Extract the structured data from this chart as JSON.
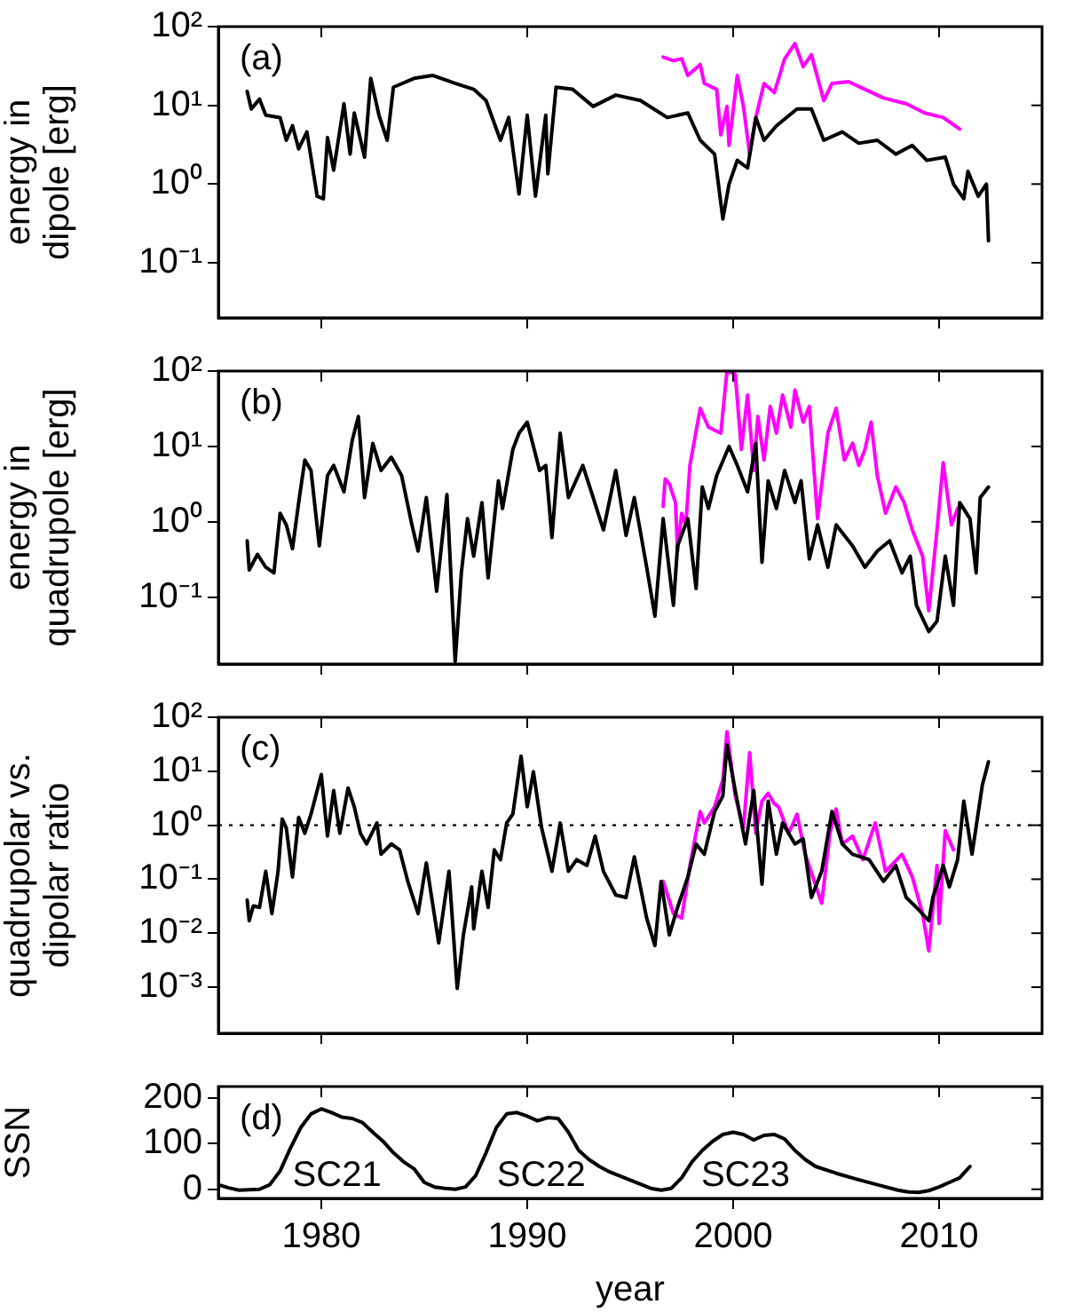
{
  "chart_data": [
    {
      "type": "line",
      "ylabel": "energy in dipole [erg]",
      "annotations": [
        "(a)"
      ],
      "log": "y",
      "xlim": [
        1975,
        2015
      ],
      "xticks": [
        1980,
        1990,
        2000,
        2010
      ],
      "ylim": [
        0.02,
        100
      ],
      "yticks": [
        {
          "value": 100,
          "label": "10²"
        },
        {
          "value": 10,
          "label": "10¹"
        },
        {
          "value": 1,
          "label": "10⁰"
        },
        {
          "value": 0.1,
          "label": "10⁻¹"
        }
      ],
      "tick_labels": "y",
      "series": [
        {
          "color": "#000000",
          "x": [
            1976.4,
            1976.6,
            1977.0,
            1977.3,
            1978.0,
            1978.3,
            1978.6,
            1978.9,
            1979.3,
            1979.8,
            1980.1,
            1980.3,
            1980.6,
            1981.1,
            1981.4,
            1981.6,
            1982.1,
            1982.4,
            1982.8,
            1983.2,
            1983.5,
            1984.5,
            1985.4,
            1986.5,
            1987.4,
            1988.0,
            1988.7,
            1989.1,
            1989.6,
            1990.0,
            1990.4,
            1990.9,
            1991.0,
            1991.4,
            1992.2,
            1993.2,
            1994.3,
            1995.5,
            1996.8,
            1997.8,
            1998.4,
            1999.1,
            1999.5,
            1999.8,
            2000.2,
            2000.7,
            2001.1,
            2001.5,
            2002.1,
            2003.1,
            2003.8,
            2004.4,
            2005.3,
            2006.1,
            2007.0,
            2007.9,
            2008.7,
            2009.4,
            2010.3,
            2010.7,
            2011.2,
            2011.4,
            2011.9,
            2012.3,
            2012.4
          ],
          "values": [
            15,
            9,
            12,
            7.5,
            7,
            3.6,
            5.5,
            2.8,
            4.6,
            0.7,
            0.65,
            3.9,
            1.5,
            10.5,
            2.4,
            8,
            2.2,
            22,
            7.5,
            3.6,
            17,
            22,
            24,
            19,
            16,
            11.5,
            3.6,
            7,
            0.75,
            7.5,
            0.7,
            7.5,
            1.35,
            17,
            16,
            9.7,
            13.5,
            11.5,
            7,
            8,
            3.6,
            2.4,
            0.36,
            1.0,
            2.0,
            1.6,
            7,
            3.6,
            5.5,
            9,
            9,
            3.6,
            4.6,
            3.3,
            3.6,
            2.4,
            3.1,
            2.0,
            2.2,
            1.0,
            0.65,
            1.45,
            0.7,
            1.0,
            0.19
          ]
        },
        {
          "color": "#ff00ff",
          "x": [
            1996.6,
            1997.1,
            1997.5,
            1997.8,
            1998.4,
            1998.6,
            1999.2,
            1999.4,
            1999.7,
            1999.8,
            2000.2,
            2000.5,
            2000.8,
            2001.1,
            2001.5,
            2002.0,
            2002.5,
            2003.0,
            2003.4,
            2003.8,
            2004.4,
            2004.8,
            2005.6,
            2006.4,
            2007.3,
            2008.4,
            2009.3,
            2010.2,
            2011.0
          ],
          "values": [
            41,
            37,
            39,
            24,
            33,
            19,
            16,
            4.2,
            9.7,
            3.1,
            24,
            9.7,
            2.4,
            7,
            19,
            14.5,
            39,
            61,
            31,
            44,
            11.5,
            19,
            20,
            16,
            12.4,
            10.5,
            8,
            7,
            5
          ]
        }
      ]
    },
    {
      "type": "line",
      "ylabel": "energy in quadrupole [erg]",
      "annotations": [
        "(b)"
      ],
      "log": "y",
      "xlim": [
        1975,
        2015
      ],
      "xticks": [
        1980,
        1990,
        2000,
        2010
      ],
      "ylim": [
        0.013,
        100
      ],
      "yticks": [
        {
          "value": 100,
          "label": "10²"
        },
        {
          "value": 10,
          "label": "10¹"
        },
        {
          "value": 1,
          "label": "10⁰"
        },
        {
          "value": 0.1,
          "label": "10⁻¹"
        }
      ],
      "tick_labels": "y",
      "series": [
        {
          "color": "#000000",
          "x": [
            1976.4,
            1976.5,
            1976.9,
            1977.3,
            1977.7,
            1978.0,
            1978.3,
            1978.6,
            1978.9,
            1979.2,
            1979.5,
            1979.9,
            1980.3,
            1980.6,
            1981.1,
            1981.5,
            1981.8,
            1982.1,
            1982.5,
            1982.9,
            1983.4,
            1983.9,
            1984.4,
            1984.7,
            1985.1,
            1985.6,
            1986.1,
            1986.5,
            1986.8,
            1987.1,
            1987.4,
            1987.8,
            1988.1,
            1988.6,
            1988.8,
            1989.3,
            1989.6,
            1990.0,
            1990.6,
            1990.9,
            1991.2,
            1991.6,
            1992.0,
            1992.7,
            1993.2,
            1993.7,
            1994.3,
            1994.8,
            1995.2,
            1995.8,
            1996.2,
            1996.6,
            1997.1,
            1997.3,
            1997.8,
            1998.2,
            1998.5,
            1998.8,
            1999.2,
            1999.8,
            2000.2,
            2000.7,
            2001.1,
            2001.4,
            2001.7,
            2002.1,
            2002.5,
            2003.0,
            2003.3,
            2003.7,
            2004.1,
            2004.6,
            2005.0,
            2005.8,
            2006.4,
            2007.0,
            2007.6,
            2008.2,
            2008.6,
            2008.9,
            2009.5,
            2009.9,
            2010.3,
            2010.7,
            2011.0,
            2011.5,
            2011.8,
            2012.0,
            2012.4
          ],
          "values": [
            0.56,
            0.23,
            0.37,
            0.25,
            0.21,
            1.3,
            0.91,
            0.44,
            1.8,
            6.6,
            4.8,
            0.48,
            4.1,
            5.6,
            2.5,
            12,
            25,
            2.1,
            11,
            4.8,
            7.2,
            4.1,
            0.91,
            0.41,
            2.1,
            0.12,
            2.3,
            0.014,
            0.21,
            1.1,
            0.35,
            1.8,
            0.18,
            3.5,
            1.5,
            9.1,
            15,
            21,
            4.8,
            5.6,
            0.62,
            15,
            2.1,
            5.6,
            2.1,
            0.78,
            4.8,
            0.66,
            2.1,
            0.25,
            0.056,
            1.1,
            0.078,
            0.48,
            1.1,
            0.13,
            2.9,
            1.5,
            4.1,
            10,
            5.6,
            2.5,
            11,
            0.29,
            3.5,
            1.5,
            4.8,
            1.8,
            3.5,
            0.32,
            0.91,
            0.25,
            0.91,
            0.48,
            0.25,
            0.41,
            0.56,
            0.21,
            0.35,
            0.078,
            0.035,
            0.048,
            0.35,
            0.078,
            1.8,
            1.1,
            0.21,
            2.1,
            2.9
          ]
        },
        {
          "color": "#ff00ff",
          "x": [
            1996.6,
            1996.7,
            1996.9,
            1997.2,
            1997.3,
            1997.5,
            1997.7,
            1997.9,
            1998.4,
            1998.8,
            1999.4,
            1999.7,
            2000.1,
            2000.4,
            2000.7,
            2001.0,
            2001.2,
            2001.5,
            2001.8,
            2002.1,
            2002.4,
            2002.8,
            2003.0,
            2003.4,
            2003.7,
            2004.1,
            2004.6,
            2005.0,
            2005.4,
            2005.8,
            2006.1,
            2006.4,
            2006.7,
            2007.0,
            2007.4,
            2007.9,
            2008.3,
            2008.7,
            2009.2,
            2009.5,
            2009.9,
            2010.2,
            2010.6,
            2010.9
          ],
          "values": [
            1.6,
            3.7,
            3.2,
            1.8,
            0.41,
            1.3,
            0.9,
            5.6,
            32,
            18,
            15,
            100,
            91,
            9.1,
            48,
            4.8,
            25,
            6.6,
            34,
            15,
            48,
            18,
            56,
            21,
            34,
            1.1,
            15,
            32,
            6.6,
            11,
            5.6,
            9.1,
            21,
            4.1,
            1.3,
            2.9,
            1.8,
            0.78,
            0.35,
            0.066,
            0.78,
            6.1,
            0.91,
            1.5
          ]
        }
      ]
    },
    {
      "type": "line",
      "ylabel": "quadrupolar vs. dipolar ratio",
      "annotations": [
        "(c)"
      ],
      "log": "y",
      "xlim": [
        1975,
        2015
      ],
      "xticks": [
        1980,
        1990,
        2000,
        2010
      ],
      "ylim": [
        0.00014,
        100
      ],
      "yticks": [
        {
          "value": 100,
          "label": "10²"
        },
        {
          "value": 10,
          "label": "10¹"
        },
        {
          "value": 1,
          "label": "10⁰"
        },
        {
          "value": 0.1,
          "label": "10⁻¹"
        },
        {
          "value": 0.01,
          "label": "10⁻²"
        },
        {
          "value": 0.001,
          "label": "10⁻³"
        }
      ],
      "tick_labels": "y",
      "ref_lines": [
        {
          "axis": "y",
          "value": 1,
          "line_style": "dotted"
        }
      ],
      "series": [
        {
          "color": "#000000",
          "x": [
            1976.4,
            1976.5,
            1976.7,
            1977.0,
            1977.3,
            1977.6,
            1977.9,
            1978.1,
            1978.3,
            1978.6,
            1978.9,
            1979.2,
            1979.5,
            1980.0,
            1980.3,
            1980.6,
            1980.9,
            1981.3,
            1981.6,
            1981.9,
            1982.2,
            1982.7,
            1982.9,
            1983.4,
            1983.8,
            1984.2,
            1984.7,
            1985.1,
            1985.7,
            1986.2,
            1986.6,
            1986.9,
            1987.3,
            1987.4,
            1987.8,
            1988.1,
            1988.4,
            1988.7,
            1989.0,
            1989.3,
            1989.7,
            1990.0,
            1990.3,
            1990.7,
            1991.2,
            1991.6,
            1992.0,
            1992.4,
            1992.9,
            1993.3,
            1993.7,
            1994.3,
            1994.8,
            1995.2,
            1995.8,
            1996.2,
            1996.5,
            1996.9,
            1997.3,
            1997.8,
            1998.2,
            1998.6,
            1999.1,
            1999.5,
            1999.7,
            2000.1,
            2000.6,
            2001.0,
            2001.4,
            2001.7,
            2002.1,
            2002.4,
            2003.0,
            2003.4,
            2003.8,
            2004.3,
            2004.8,
            2005.3,
            2005.8,
            2006.6,
            2007.3,
            2007.9,
            2008.4,
            2008.9,
            2009.5,
            2009.7,
            2010.2,
            2010.5,
            2010.9,
            2011.2,
            2011.6,
            2012.1,
            2012.4
          ],
          "values": [
            0.041,
            0.017,
            0.032,
            0.03,
            0.14,
            0.023,
            0.14,
            1.3,
            0.89,
            0.11,
            1.4,
            0.71,
            1.6,
            8.7,
            0.63,
            4.4,
            0.71,
            4.9,
            2.2,
            0.71,
            0.45,
            1.1,
            0.29,
            0.45,
            0.35,
            0.091,
            0.023,
            0.2,
            0.0066,
            0.14,
            0.00095,
            0.0093,
            0.072,
            0.012,
            0.14,
            0.03,
            0.35,
            0.23,
            1.1,
            1.6,
            19,
            2.2,
            9.8,
            0.89,
            0.14,
            1.1,
            0.14,
            0.23,
            0.18,
            0.63,
            0.14,
            0.051,
            0.046,
            0.26,
            0.019,
            0.0059,
            0.091,
            0.0093,
            0.03,
            0.11,
            0.45,
            0.29,
            1.8,
            3.5,
            31,
            4.4,
            0.45,
            4.4,
            0.081,
            2.8,
            0.29,
            1.1,
            0.45,
            0.56,
            0.046,
            0.14,
            1.8,
            0.45,
            0.29,
            0.23,
            0.091,
            0.18,
            0.046,
            0.03,
            0.017,
            0.046,
            0.18,
            0.072,
            0.23,
            2.8,
            0.29,
            5.5,
            15
          ]
        },
        {
          "color": "#ff00ff",
          "x": [
            1996.6,
            1997.1,
            1997.5,
            1997.9,
            1998.4,
            1998.6,
            1999.1,
            1999.5,
            1999.7,
            2000.1,
            2000.5,
            2000.8,
            2001.1,
            2001.4,
            2001.7,
            2002.0,
            2002.2,
            2002.7,
            2003.1,
            2003.5,
            2004.3,
            2004.7,
            2005.0,
            2005.3,
            2005.8,
            2006.3,
            2006.9,
            2007.4,
            2008.2,
            2008.7,
            2009.2,
            2009.5,
            2009.9,
            2010.0,
            2010.3,
            2010.7
          ],
          "values": [
            0.091,
            0.023,
            0.019,
            0.18,
            1.8,
            1.1,
            2.2,
            6.9,
            54,
            3.5,
            0.89,
            22,
            0.71,
            2.8,
            3.9,
            2.5,
            2.2,
            0.71,
            1.6,
            0.29,
            0.036,
            0.71,
            2.0,
            0.45,
            0.63,
            0.23,
            1.1,
            0.14,
            0.29,
            0.11,
            0.023,
            0.0047,
            0.18,
            0.015,
            0.79,
            0.35
          ]
        }
      ]
    },
    {
      "type": "line",
      "xlabel": "year",
      "ylabel": "SSN",
      "annotations": [
        "(d)",
        "SC21",
        "SC22",
        "SC23"
      ],
      "xlim": [
        1975,
        2015
      ],
      "xticks": [
        1980,
        1990,
        2000,
        2010
      ],
      "ylim": [
        -20,
        225
      ],
      "yticks": [
        0,
        100,
        200
      ],
      "series": [
        {
          "color": "#000000",
          "x": [
            1975,
            1975.5,
            1976,
            1976.5,
            1977,
            1977.5,
            1978,
            1978.5,
            1979,
            1979.5,
            1980,
            1980.5,
            1981,
            1981.5,
            1982,
            1982.5,
            1983,
            1983.5,
            1984,
            1984.5,
            1985,
            1985.5,
            1986,
            1986.5,
            1987,
            1987.5,
            1988,
            1988.5,
            1989,
            1989.5,
            1990,
            1990.5,
            1991,
            1991.5,
            1992,
            1992.5,
            1993,
            1993.5,
            1994,
            1995,
            1996,
            1996.5,
            1997,
            1997.5,
            1998,
            1998.5,
            1999,
            1999.5,
            2000,
            2000.5,
            2001,
            2001.5,
            2002,
            2002.5,
            2003,
            2003.5,
            2004,
            2005,
            2006,
            2007,
            2008,
            2008.5,
            2009,
            2009.5,
            2010,
            2010.5,
            2011,
            2011.5
          ],
          "values": [
            10,
            3,
            -2,
            -1,
            0,
            10,
            40,
            90,
            135,
            165,
            176,
            168,
            158,
            155,
            146,
            125,
            105,
            80,
            60,
            45,
            15,
            5,
            2,
            0,
            5,
            30,
            80,
            135,
            165,
            168,
            160,
            150,
            157,
            155,
            125,
            85,
            65,
            50,
            38,
            20,
            2,
            -2,
            2,
            25,
            60,
            85,
            105,
            120,
            125,
            120,
            108,
            118,
            120,
            110,
            85,
            65,
            50,
            35,
            22,
            10,
            -2,
            -6,
            -7,
            -3,
            5,
            15,
            25,
            50
          ]
        }
      ]
    }
  ]
}
